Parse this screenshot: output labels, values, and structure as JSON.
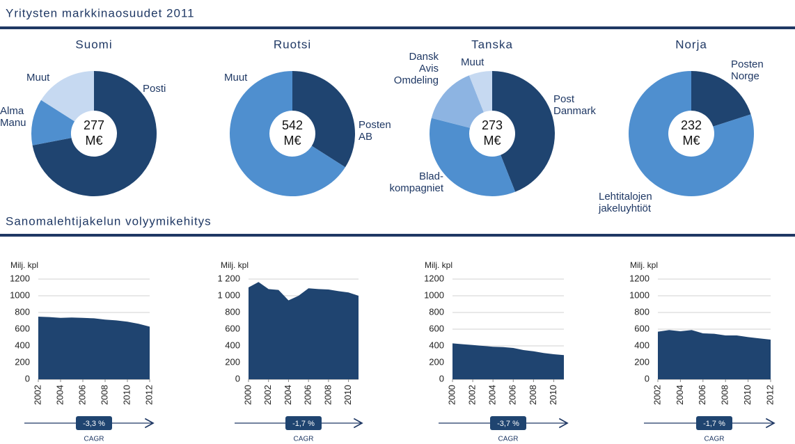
{
  "headings": [
    "Yritysten markkinaosuudet 2011",
    "Sanomalehtijakelun volyymikehitys"
  ],
  "chart_data": [
    {
      "type": "donut",
      "title": "Suomi",
      "center_value": "277",
      "center_unit": "M€",
      "categories": [
        [
          "Posti"
        ],
        [
          "Alma",
          "Manu"
        ],
        [
          "Muut"
        ]
      ],
      "values": [
        72,
        12,
        16
      ],
      "colors": [
        "#1f4470",
        "#4f8fcf",
        "#c6d9f1"
      ]
    },
    {
      "type": "donut",
      "title": "Ruotsi",
      "center_value": "542",
      "center_unit": "M€",
      "categories": [
        [
          "Posten",
          "AB"
        ],
        [
          "Muut"
        ]
      ],
      "values": [
        34,
        66
      ],
      "colors": [
        "#1f4470",
        "#4f8fcf"
      ]
    },
    {
      "type": "donut",
      "title": "Tanska",
      "center_value": "273",
      "center_unit": "M€",
      "categories": [
        [
          "Post",
          "Danmark"
        ],
        [
          "Blad-",
          "kompagniet"
        ],
        [
          "Dansk",
          "Avis",
          "Omdeling"
        ],
        [
          "Muut"
        ]
      ],
      "values": [
        44,
        35,
        15,
        6
      ],
      "colors": [
        "#1f4470",
        "#4f8fcf",
        "#8db4e2",
        "#c6d9f1"
      ]
    },
    {
      "type": "donut",
      "title": "Norja",
      "center_value": "232",
      "center_unit": "M€",
      "categories": [
        [
          "Posten",
          "Norge"
        ],
        [
          "Lehtitalojen",
          "jakeluyhtiöt"
        ]
      ],
      "values": [
        20,
        80
      ],
      "colors": [
        "#1f4470",
        "#4f8fcf"
      ]
    },
    {
      "type": "area",
      "ylabel": "Milj. kpl",
      "color": "#1f4470",
      "x": [
        2002,
        2003,
        2004,
        2005,
        2006,
        2007,
        2008,
        2009,
        2010,
        2011,
        2012
      ],
      "values": [
        750,
        745,
        735,
        740,
        735,
        730,
        715,
        705,
        690,
        665,
        630
      ],
      "xlim": [
        2002,
        2012
      ],
      "xticks": [
        2002,
        2004,
        2006,
        2008,
        2010,
        2012
      ],
      "ylim": [
        0,
        1200
      ],
      "yticks": [
        0,
        200,
        400,
        600,
        800,
        1000,
        1200
      ],
      "grid": true,
      "annotation": "-3,3 %",
      "annotation_caption": "CAGR"
    },
    {
      "type": "area",
      "ylabel": "Milj. kpl",
      "color": "#1f4470",
      "x": [
        2000,
        2001,
        2002,
        2003,
        2004,
        2005,
        2006,
        2007,
        2008,
        2009,
        2010,
        2011
      ],
      "values": [
        1100,
        1165,
        1080,
        1070,
        945,
        1000,
        1090,
        1080,
        1075,
        1055,
        1040,
        1000
      ],
      "xlim": [
        2000,
        2011
      ],
      "xticks": [
        2000,
        2002,
        2004,
        2006,
        2008,
        2010
      ],
      "ylim": [
        0,
        1200
      ],
      "yticks": [
        0,
        200,
        400,
        600,
        800,
        {
          "value": 1000,
          "label": "1 000"
        },
        {
          "value": 1200,
          "label": "1 200"
        }
      ],
      "grid": true,
      "annotation": "-1,7 %",
      "annotation_caption": "CAGR"
    },
    {
      "type": "area",
      "ylabel": "Milj. kpl",
      "color": "#1f4470",
      "x": [
        2000,
        2001,
        2002,
        2003,
        2004,
        2005,
        2006,
        2007,
        2008,
        2009,
        2010,
        2011
      ],
      "values": [
        430,
        420,
        410,
        400,
        390,
        385,
        375,
        350,
        335,
        315,
        300,
        290
      ],
      "xlim": [
        2000,
        2011
      ],
      "xticks": [
        2000,
        2002,
        2004,
        2006,
        2008,
        2010
      ],
      "ylim": [
        0,
        1200
      ],
      "yticks": [
        0,
        200,
        400,
        600,
        800,
        1000,
        1200
      ],
      "grid": true,
      "annotation": "-3,7 %",
      "annotation_caption": "CAGR"
    },
    {
      "type": "area",
      "ylabel": "Milj. kpl",
      "color": "#1f4470",
      "x": [
        2002,
        2003,
        2004,
        2005,
        2006,
        2007,
        2008,
        2009,
        2010,
        2011,
        2012
      ],
      "values": [
        570,
        590,
        575,
        590,
        550,
        545,
        525,
        525,
        505,
        490,
        475
      ],
      "xlim": [
        2002,
        2012
      ],
      "xticks": [
        2002,
        2004,
        2006,
        2008,
        2010,
        2012
      ],
      "ylim": [
        0,
        1200
      ],
      "yticks": [
        0,
        200,
        400,
        600,
        800,
        1000,
        1200
      ],
      "grid": true,
      "annotation": "-1,7 %",
      "annotation_caption": "CAGR"
    }
  ]
}
